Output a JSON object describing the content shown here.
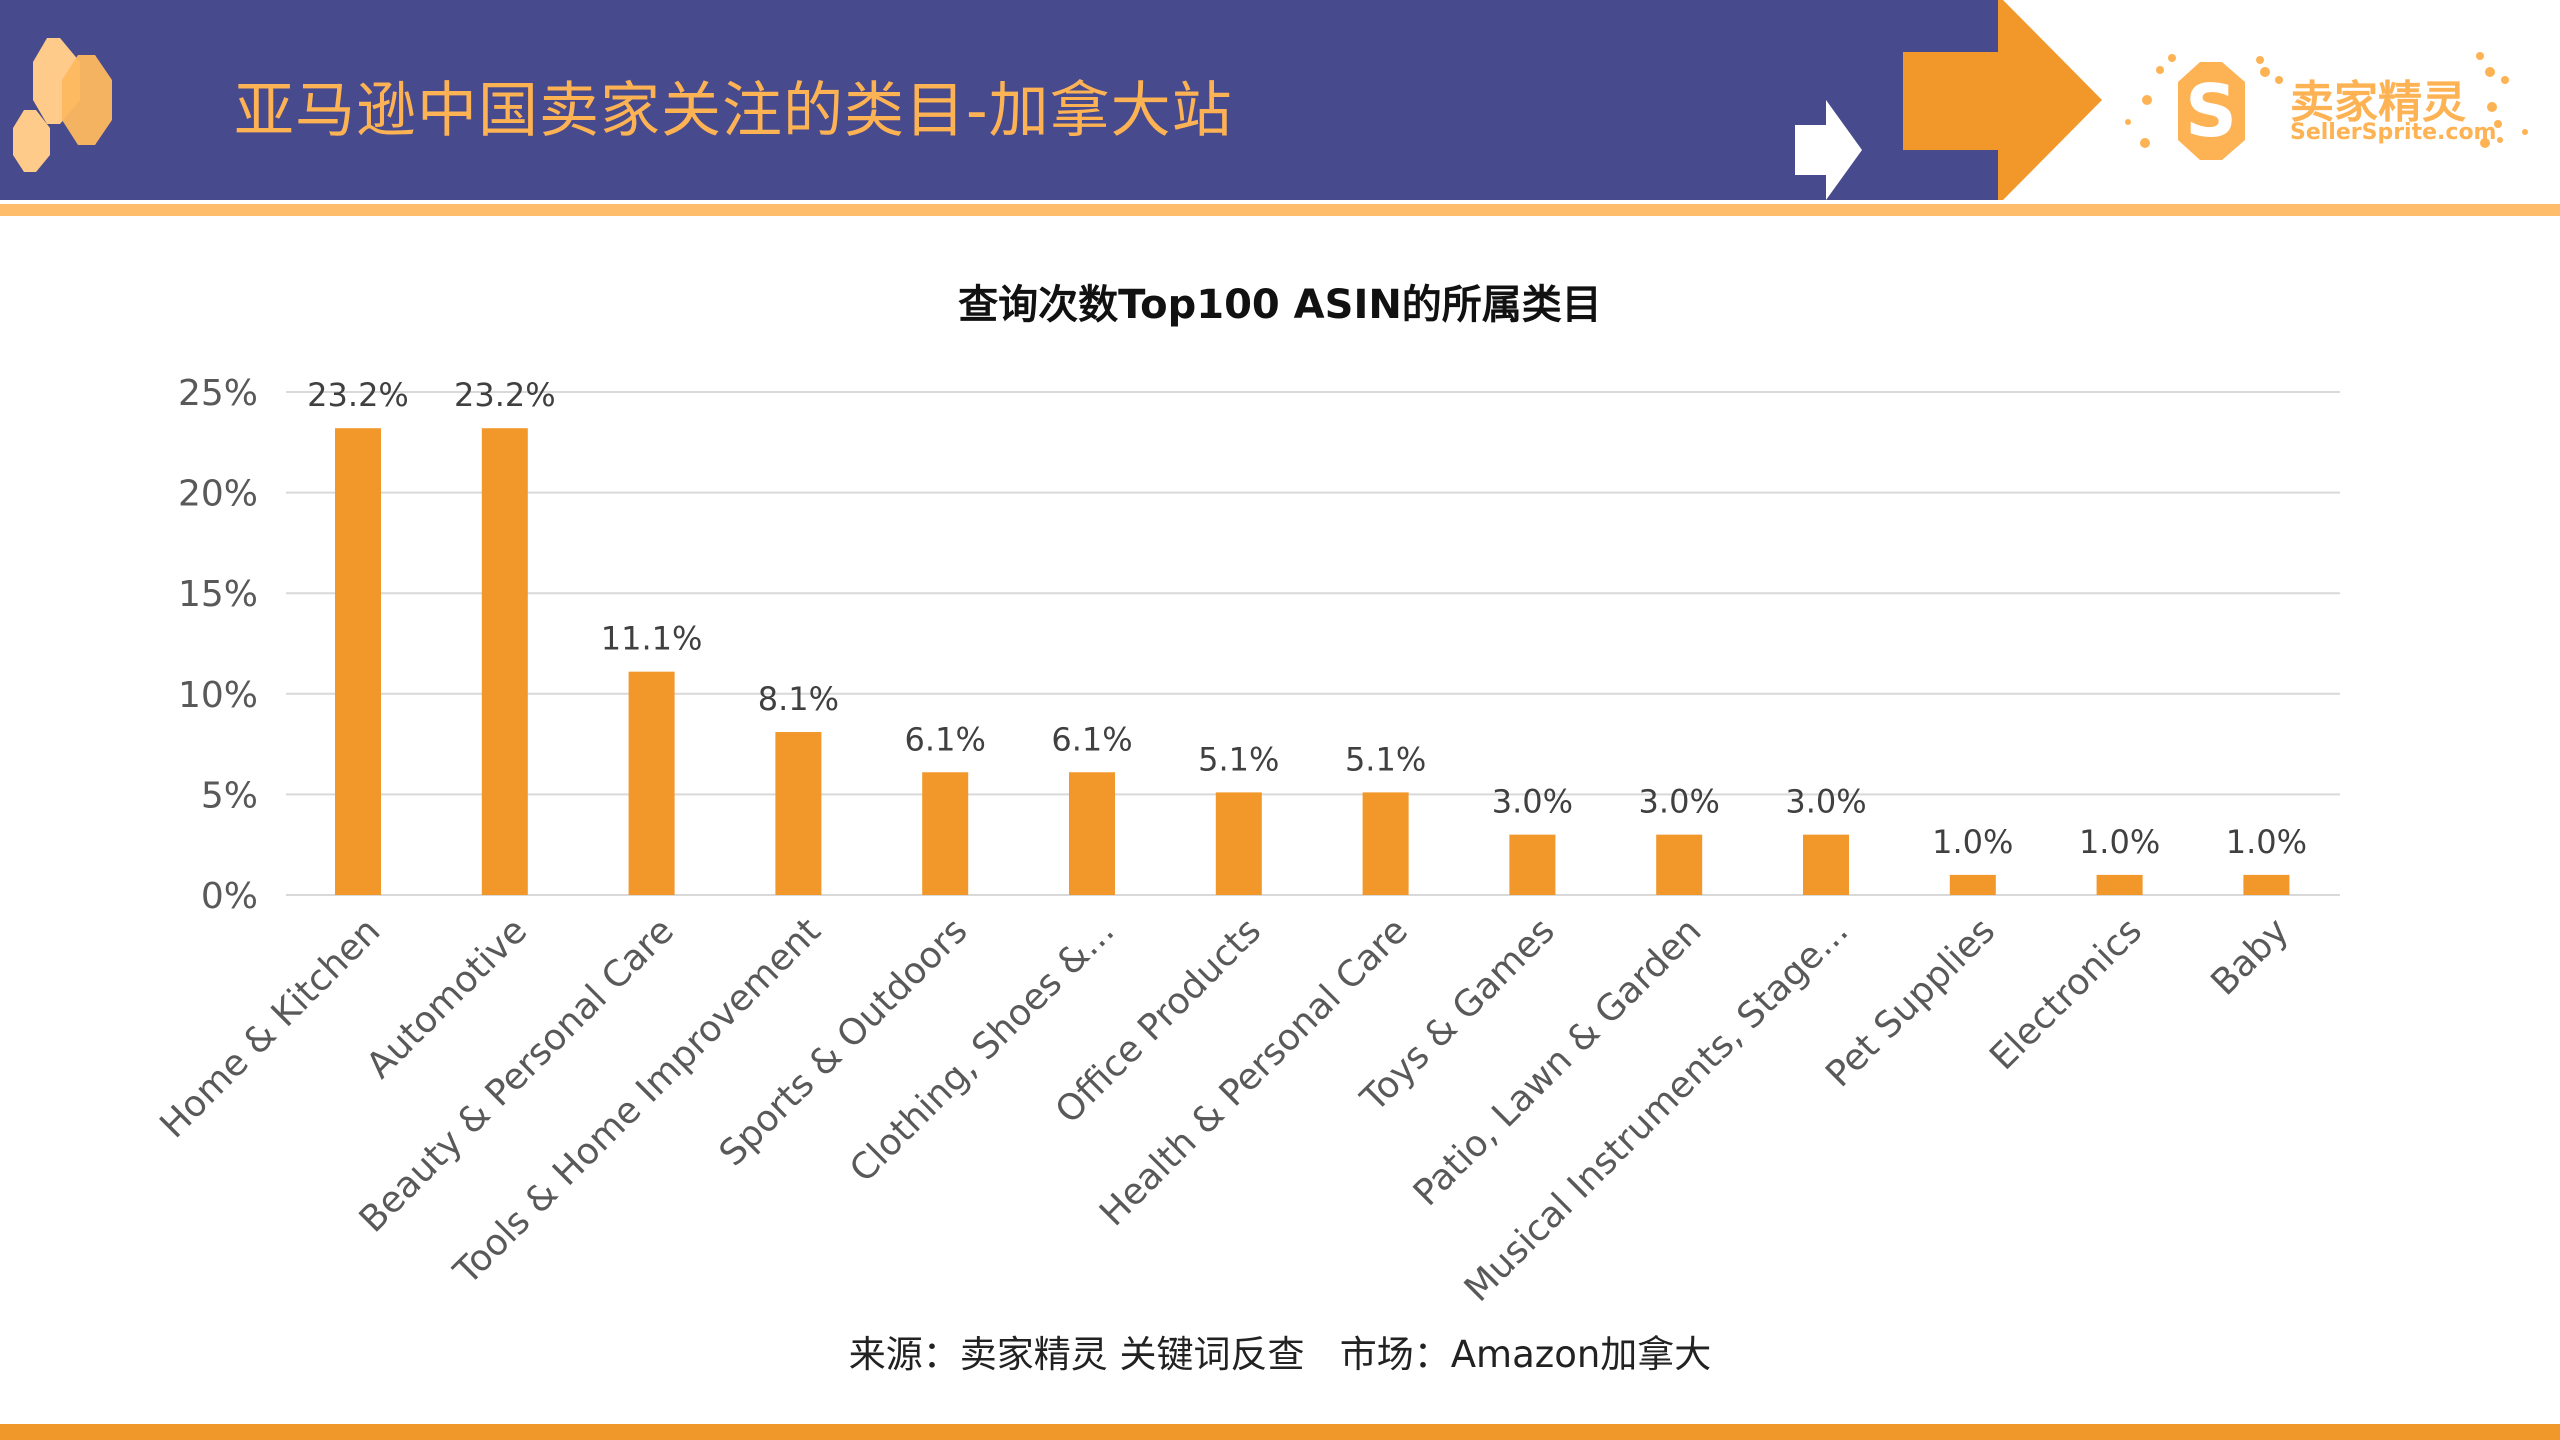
{
  "header": {
    "title": "亚马逊中国卖家关注的类目-加拿大站",
    "logo_cn": "卖家精灵",
    "logo_en": "SellerSprite.com",
    "colors": {
      "header_bg": "#484a8e",
      "accent": "#fdb254",
      "arrow": "#f2972a"
    }
  },
  "chart_data": {
    "type": "bar",
    "title": "查询次数Top100 ASIN的所属类目",
    "categories": [
      "Home & Kitchen",
      "Automotive",
      "Beauty & Personal Care",
      "Tools & Home Improvement",
      "Sports & Outdoors",
      "Clothing, Shoes &...",
      "Office Products",
      "Health & Personal Care",
      "Toys & Games",
      "Patio, Lawn & Garden",
      "Musical Instruments, Stage...",
      "Pet Supplies",
      "Electronics",
      "Baby"
    ],
    "values": [
      23.2,
      23.2,
      11.1,
      8.1,
      6.1,
      6.1,
      5.1,
      5.1,
      3.0,
      3.0,
      3.0,
      1.0,
      1.0,
      1.0
    ],
    "data_labels": [
      "23.2%",
      "23.2%",
      "11.1%",
      "8.1%",
      "6.1%",
      "6.1%",
      "5.1%",
      "5.1%",
      "3.0%",
      "3.0%",
      "3.0%",
      "1.0%",
      "1.0%",
      "1.0%"
    ],
    "yticks": [
      "0%",
      "5%",
      "10%",
      "15%",
      "20%",
      "25%"
    ],
    "ylim": [
      0,
      25
    ],
    "grid": true,
    "bar_color": "#f2972a",
    "xlabel": "",
    "ylabel": ""
  },
  "footer": {
    "source": "来源：卖家精灵 关键词反查   市场：Amazon加拿大"
  }
}
